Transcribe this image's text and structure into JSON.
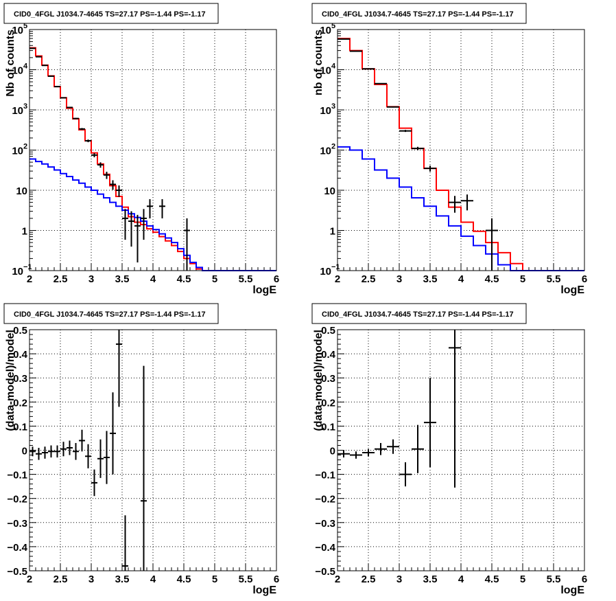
{
  "chart_data": [
    {
      "type": "line",
      "title": "CID0_4FGL J1034.7-4645 TS=27.17 PS=-1.44 PS=-1.17",
      "xlabel": "logE",
      "ylabel": "Nb of counts",
      "xlim": [
        2,
        6
      ],
      "ylim": [
        0.1,
        100000
      ],
      "yscale": "log",
      "grid": true,
      "xticks": [
        "2",
        "2.5",
        "3",
        "3.5",
        "4",
        "4.5",
        "5",
        "5.5",
        "6"
      ],
      "yticks": [
        {
          "v": 0.1,
          "label": "10",
          "sup": "−1"
        },
        {
          "v": 1,
          "label": "1",
          "sup": ""
        },
        {
          "v": 10,
          "label": "10",
          "sup": ""
        },
        {
          "v": 100,
          "label": "10",
          "sup": "2"
        },
        {
          "v": 1000,
          "label": "10",
          "sup": "3"
        },
        {
          "v": 10000,
          "label": "10",
          "sup": "4"
        },
        {
          "v": 100000,
          "label": "10",
          "sup": "5"
        }
      ],
      "bin_edges": [
        2.0,
        2.1,
        2.2,
        2.3,
        2.4,
        2.5,
        2.6,
        2.7,
        2.8,
        2.9,
        3.0,
        3.1,
        3.2,
        3.3,
        3.4,
        3.5,
        3.6,
        3.7,
        3.8,
        3.9,
        4.0,
        4.1,
        4.2,
        4.3,
        4.4,
        4.5,
        4.6,
        4.7,
        4.8,
        4.9,
        5.0,
        5.1,
        5.2,
        5.3,
        5.4,
        5.5,
        5.6,
        5.7,
        5.8,
        5.9,
        6.0
      ],
      "series": [
        {
          "color": "#ff0000",
          "values": [
            35000,
            22000,
            13000,
            7000,
            3800,
            2000,
            1100,
            600,
            320,
            170,
            85,
            45,
            25,
            13,
            7,
            3.8,
            2.2,
            1.6,
            1.4,
            1.1,
            0.9,
            0.7,
            0.55,
            0.42,
            0.3,
            0.2,
            0.15,
            0.11,
            0.1,
            0.1,
            0.1,
            0.1,
            0.1,
            0.1,
            0.1,
            0.1,
            0.1,
            0.1,
            0.1,
            0.1
          ]
        },
        {
          "color": "#0000ff",
          "values": [
            60,
            52,
            45,
            38,
            32,
            26,
            22,
            18,
            15,
            12,
            10,
            8,
            6.5,
            5,
            4,
            3.2,
            2.6,
            2.1,
            1.7,
            1.3,
            1.05,
            0.82,
            0.65,
            0.5,
            0.35,
            0.24,
            0.16,
            0.12,
            0.1,
            0.1,
            0.1,
            0.1,
            0.1,
            0.1,
            0.1,
            0.1,
            0.1,
            0.1,
            0.1,
            0.1
          ]
        }
      ],
      "points": [
        {
          "x": 2.05,
          "y": 34000
        },
        {
          "x": 2.15,
          "y": 21000
        },
        {
          "x": 2.25,
          "y": 12800
        },
        {
          "x": 2.35,
          "y": 6900
        },
        {
          "x": 2.45,
          "y": 3800
        },
        {
          "x": 2.55,
          "y": 2000
        },
        {
          "x": 2.65,
          "y": 1150
        },
        {
          "x": 2.75,
          "y": 610
        },
        {
          "x": 2.85,
          "y": 335
        },
        {
          "x": 2.95,
          "y": 170
        },
        {
          "x": 3.05,
          "y": 75
        },
        {
          "x": 3.15,
          "y": 43
        },
        {
          "x": 3.25,
          "y": 24
        },
        {
          "x": 3.35,
          "y": 14
        },
        {
          "x": 3.45,
          "y": 10
        },
        {
          "x": 3.55,
          "y": 2
        },
        {
          "x": 3.65,
          "y": 1.7
        },
        {
          "x": 3.75,
          "y": 1.3
        },
        {
          "x": 3.85,
          "y": 2.0
        },
        {
          "x": 3.95,
          "y": 4.0
        },
        {
          "x": 4.15,
          "y": 4.0
        },
        {
          "x": 4.55,
          "y": 1.0
        }
      ]
    },
    {
      "type": "line",
      "title": "CID0_4FGL J1034.7-4645 TS=27.17 PS=-1.44 PS=-1.17",
      "xlabel": "logE",
      "ylabel": "nb of counts",
      "xlim": [
        2,
        6
      ],
      "ylim": [
        0.1,
        100000
      ],
      "yscale": "log",
      "grid": true,
      "xticks": [
        "2",
        "2.5",
        "3",
        "3.5",
        "4",
        "4.5",
        "5",
        "5.5",
        "6"
      ],
      "yticks": [
        {
          "v": 0.1,
          "label": "10",
          "sup": "−1"
        },
        {
          "v": 1,
          "label": "1",
          "sup": ""
        },
        {
          "v": 10,
          "label": "10",
          "sup": ""
        },
        {
          "v": 100,
          "label": "10",
          "sup": "2"
        },
        {
          "v": 1000,
          "label": "10",
          "sup": "3"
        },
        {
          "v": 10000,
          "label": "10",
          "sup": "4"
        },
        {
          "v": 100000,
          "label": "10",
          "sup": "5"
        }
      ],
      "bin_edges": [
        2.0,
        2.2,
        2.4,
        2.6,
        2.8,
        3.0,
        3.2,
        3.4,
        3.6,
        3.8,
        4.0,
        4.2,
        4.4,
        4.6,
        4.8,
        5.0,
        5.2,
        5.4,
        5.6,
        5.8,
        6.0
      ],
      "series": [
        {
          "color": "#ff0000",
          "values": [
            60000,
            30000,
            10500,
            4300,
            1200,
            350,
            110,
            35,
            10,
            3.8,
            1.6,
            0.95,
            0.5,
            0.28,
            0.15,
            0.1,
            0.1,
            0.1,
            0.1,
            0.1
          ]
        },
        {
          "color": "#0000ff",
          "values": [
            120,
            100,
            60,
            32,
            20,
            12,
            6.5,
            4,
            2.3,
            1.3,
            0.72,
            0.42,
            0.26,
            0.14,
            0.1,
            0.1,
            0.1,
            0.1,
            0.1,
            0.1
          ]
        }
      ],
      "points": [
        {
          "x": 2.1,
          "y": 58000
        },
        {
          "x": 2.3,
          "y": 29000
        },
        {
          "x": 2.5,
          "y": 10500
        },
        {
          "x": 2.7,
          "y": 4500
        },
        {
          "x": 2.9,
          "y": 1180
        },
        {
          "x": 3.1,
          "y": 300
        },
        {
          "x": 3.3,
          "y": 110
        },
        {
          "x": 3.5,
          "y": 35
        },
        {
          "x": 3.9,
          "y": 5.0
        },
        {
          "x": 4.1,
          "y": 5.5
        },
        {
          "x": 4.5,
          "y": 1.0
        }
      ]
    },
    {
      "type": "scatter",
      "title": "CID0_4FGL J1034.7-4645 TS=27.17 PS=-1.44 PS=-1.17",
      "xlabel": "logE",
      "ylabel": "(data-model)/model",
      "xlim": [
        2,
        6
      ],
      "ylim": [
        -0.5,
        0.5
      ],
      "yscale": "linear",
      "grid": true,
      "xticks": [
        "2",
        "2.5",
        "3",
        "3.5",
        "4",
        "4.5",
        "5",
        "5.5",
        "6"
      ],
      "yticks": [
        {
          "v": 0.5,
          "label": "0.5",
          "sup": ""
        },
        {
          "v": 0.4,
          "label": "0.4",
          "sup": ""
        },
        {
          "v": 0.3,
          "label": "0.3",
          "sup": ""
        },
        {
          "v": 0.2,
          "label": "0.2",
          "sup": ""
        },
        {
          "v": 0.1,
          "label": "0.1",
          "sup": ""
        },
        {
          "v": 0,
          "label": "0",
          "sup": ""
        },
        {
          "v": -0.1,
          "label": "−0.1",
          "sup": ""
        },
        {
          "v": -0.2,
          "label": "−0.2",
          "sup": ""
        },
        {
          "v": -0.3,
          "label": "−0.3",
          "sup": ""
        },
        {
          "v": -0.4,
          "label": "−0.4",
          "sup": ""
        },
        {
          "v": -0.5,
          "label": "−0.5",
          "sup": ""
        }
      ],
      "points": [
        {
          "x": 2.05,
          "y": -0.005,
          "err": 0.02
        },
        {
          "x": 2.15,
          "y": -0.015,
          "err": 0.025
        },
        {
          "x": 2.25,
          "y": -0.01,
          "err": 0.025
        },
        {
          "x": 2.35,
          "y": -0.005,
          "err": 0.025
        },
        {
          "x": 2.45,
          "y": -0.005,
          "err": 0.025
        },
        {
          "x": 2.55,
          "y": 0.005,
          "err": 0.03
        },
        {
          "x": 2.65,
          "y": 0.01,
          "err": 0.03
        },
        {
          "x": 2.75,
          "y": -0.005,
          "err": 0.035
        },
        {
          "x": 2.85,
          "y": 0.04,
          "err": 0.045
        },
        {
          "x": 2.95,
          "y": -0.025,
          "err": 0.05
        },
        {
          "x": 3.05,
          "y": -0.135,
          "err": 0.055
        },
        {
          "x": 3.15,
          "y": -0.035,
          "err": 0.08
        },
        {
          "x": 3.25,
          "y": -0.03,
          "err": 0.11
        },
        {
          "x": 3.35,
          "y": 0.07,
          "err": 0.17
        },
        {
          "x": 3.45,
          "y": 0.44,
          "err": 0.26
        },
        {
          "x": 3.55,
          "y": -0.48,
          "err": 0.21
        },
        {
          "x": 3.85,
          "y": -0.21,
          "err": 0.56
        }
      ]
    },
    {
      "type": "scatter",
      "title": "CID0_4FGL J1034.7-4645 TS=27.17 PS=-1.44 PS=-1.17",
      "xlabel": "logE",
      "ylabel": "(data-model)/model",
      "xlim": [
        2,
        6
      ],
      "ylim": [
        -0.5,
        0.5
      ],
      "yscale": "linear",
      "grid": true,
      "xticks": [
        "2",
        "2.5",
        "3",
        "3.5",
        "4",
        "4.5",
        "5",
        "5.5",
        "6"
      ],
      "yticks": [
        {
          "v": 0.5,
          "label": "0.5",
          "sup": ""
        },
        {
          "v": 0.4,
          "label": "0.4",
          "sup": ""
        },
        {
          "v": 0.3,
          "label": "0.3",
          "sup": ""
        },
        {
          "v": 0.2,
          "label": "0.2",
          "sup": ""
        },
        {
          "v": 0.1,
          "label": "0.1",
          "sup": ""
        },
        {
          "v": 0,
          "label": "0",
          "sup": ""
        },
        {
          "v": -0.1,
          "label": "−0.1",
          "sup": ""
        },
        {
          "v": -0.2,
          "label": "−0.2",
          "sup": ""
        },
        {
          "v": -0.3,
          "label": "−0.3",
          "sup": ""
        },
        {
          "v": -0.4,
          "label": "−0.4",
          "sup": ""
        },
        {
          "v": -0.5,
          "label": "−0.5",
          "sup": ""
        }
      ],
      "points": [
        {
          "x": 2.1,
          "y": -0.015,
          "err": 0.015
        },
        {
          "x": 2.3,
          "y": -0.02,
          "err": 0.015
        },
        {
          "x": 2.5,
          "y": -0.01,
          "err": 0.015
        },
        {
          "x": 2.7,
          "y": 0.005,
          "err": 0.025
        },
        {
          "x": 2.9,
          "y": 0.015,
          "err": 0.03
        },
        {
          "x": 3.1,
          "y": -0.1,
          "err": 0.05
        },
        {
          "x": 3.3,
          "y": 0.005,
          "err": 0.1
        },
        {
          "x": 3.5,
          "y": 0.115,
          "err": 0.185
        },
        {
          "x": 3.9,
          "y": 0.425,
          "err": 0.58
        }
      ]
    }
  ]
}
